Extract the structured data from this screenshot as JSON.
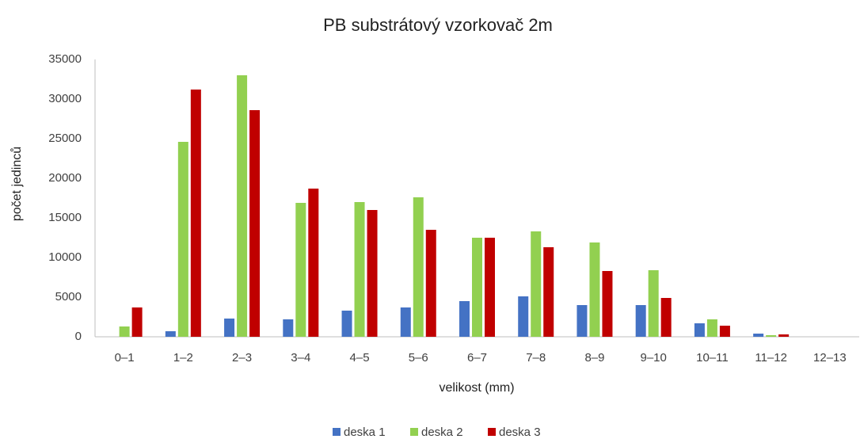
{
  "chart_data": {
    "type": "bar",
    "title": "PB substrátový vzorkovač 2m",
    "x_label": "velikost (mm)",
    "y_label": "počet jedinců",
    "categories": [
      "0–1",
      "1–2",
      "2–3",
      "3–4",
      "4–5",
      "5–6",
      "6–7",
      "7–8",
      "8–9",
      "9–10",
      "10–11",
      "11–12",
      "12–13"
    ],
    "series": [
      {
        "name": "deska 1",
        "color": "#4472c4",
        "values": [
          0,
          700,
          2300,
          2200,
          3300,
          3700,
          4500,
          5100,
          4000,
          4000,
          1700,
          400,
          0
        ]
      },
      {
        "name": "deska 2",
        "color": "#92d050",
        "values": [
          1300,
          24600,
          33000,
          16900,
          17000,
          17600,
          12500,
          13300,
          11900,
          8400,
          2200,
          200,
          0
        ]
      },
      {
        "name": "deska 3",
        "color": "#c00000",
        "values": [
          3700,
          31200,
          28600,
          18700,
          16000,
          13500,
          12500,
          11300,
          8300,
          4900,
          1400,
          300,
          0
        ]
      }
    ],
    "ylim": [
      0,
      35000
    ],
    "yticks": [
      0,
      5000,
      10000,
      15000,
      20000,
      25000,
      30000,
      35000
    ],
    "grid": false,
    "legend": "bottom"
  }
}
